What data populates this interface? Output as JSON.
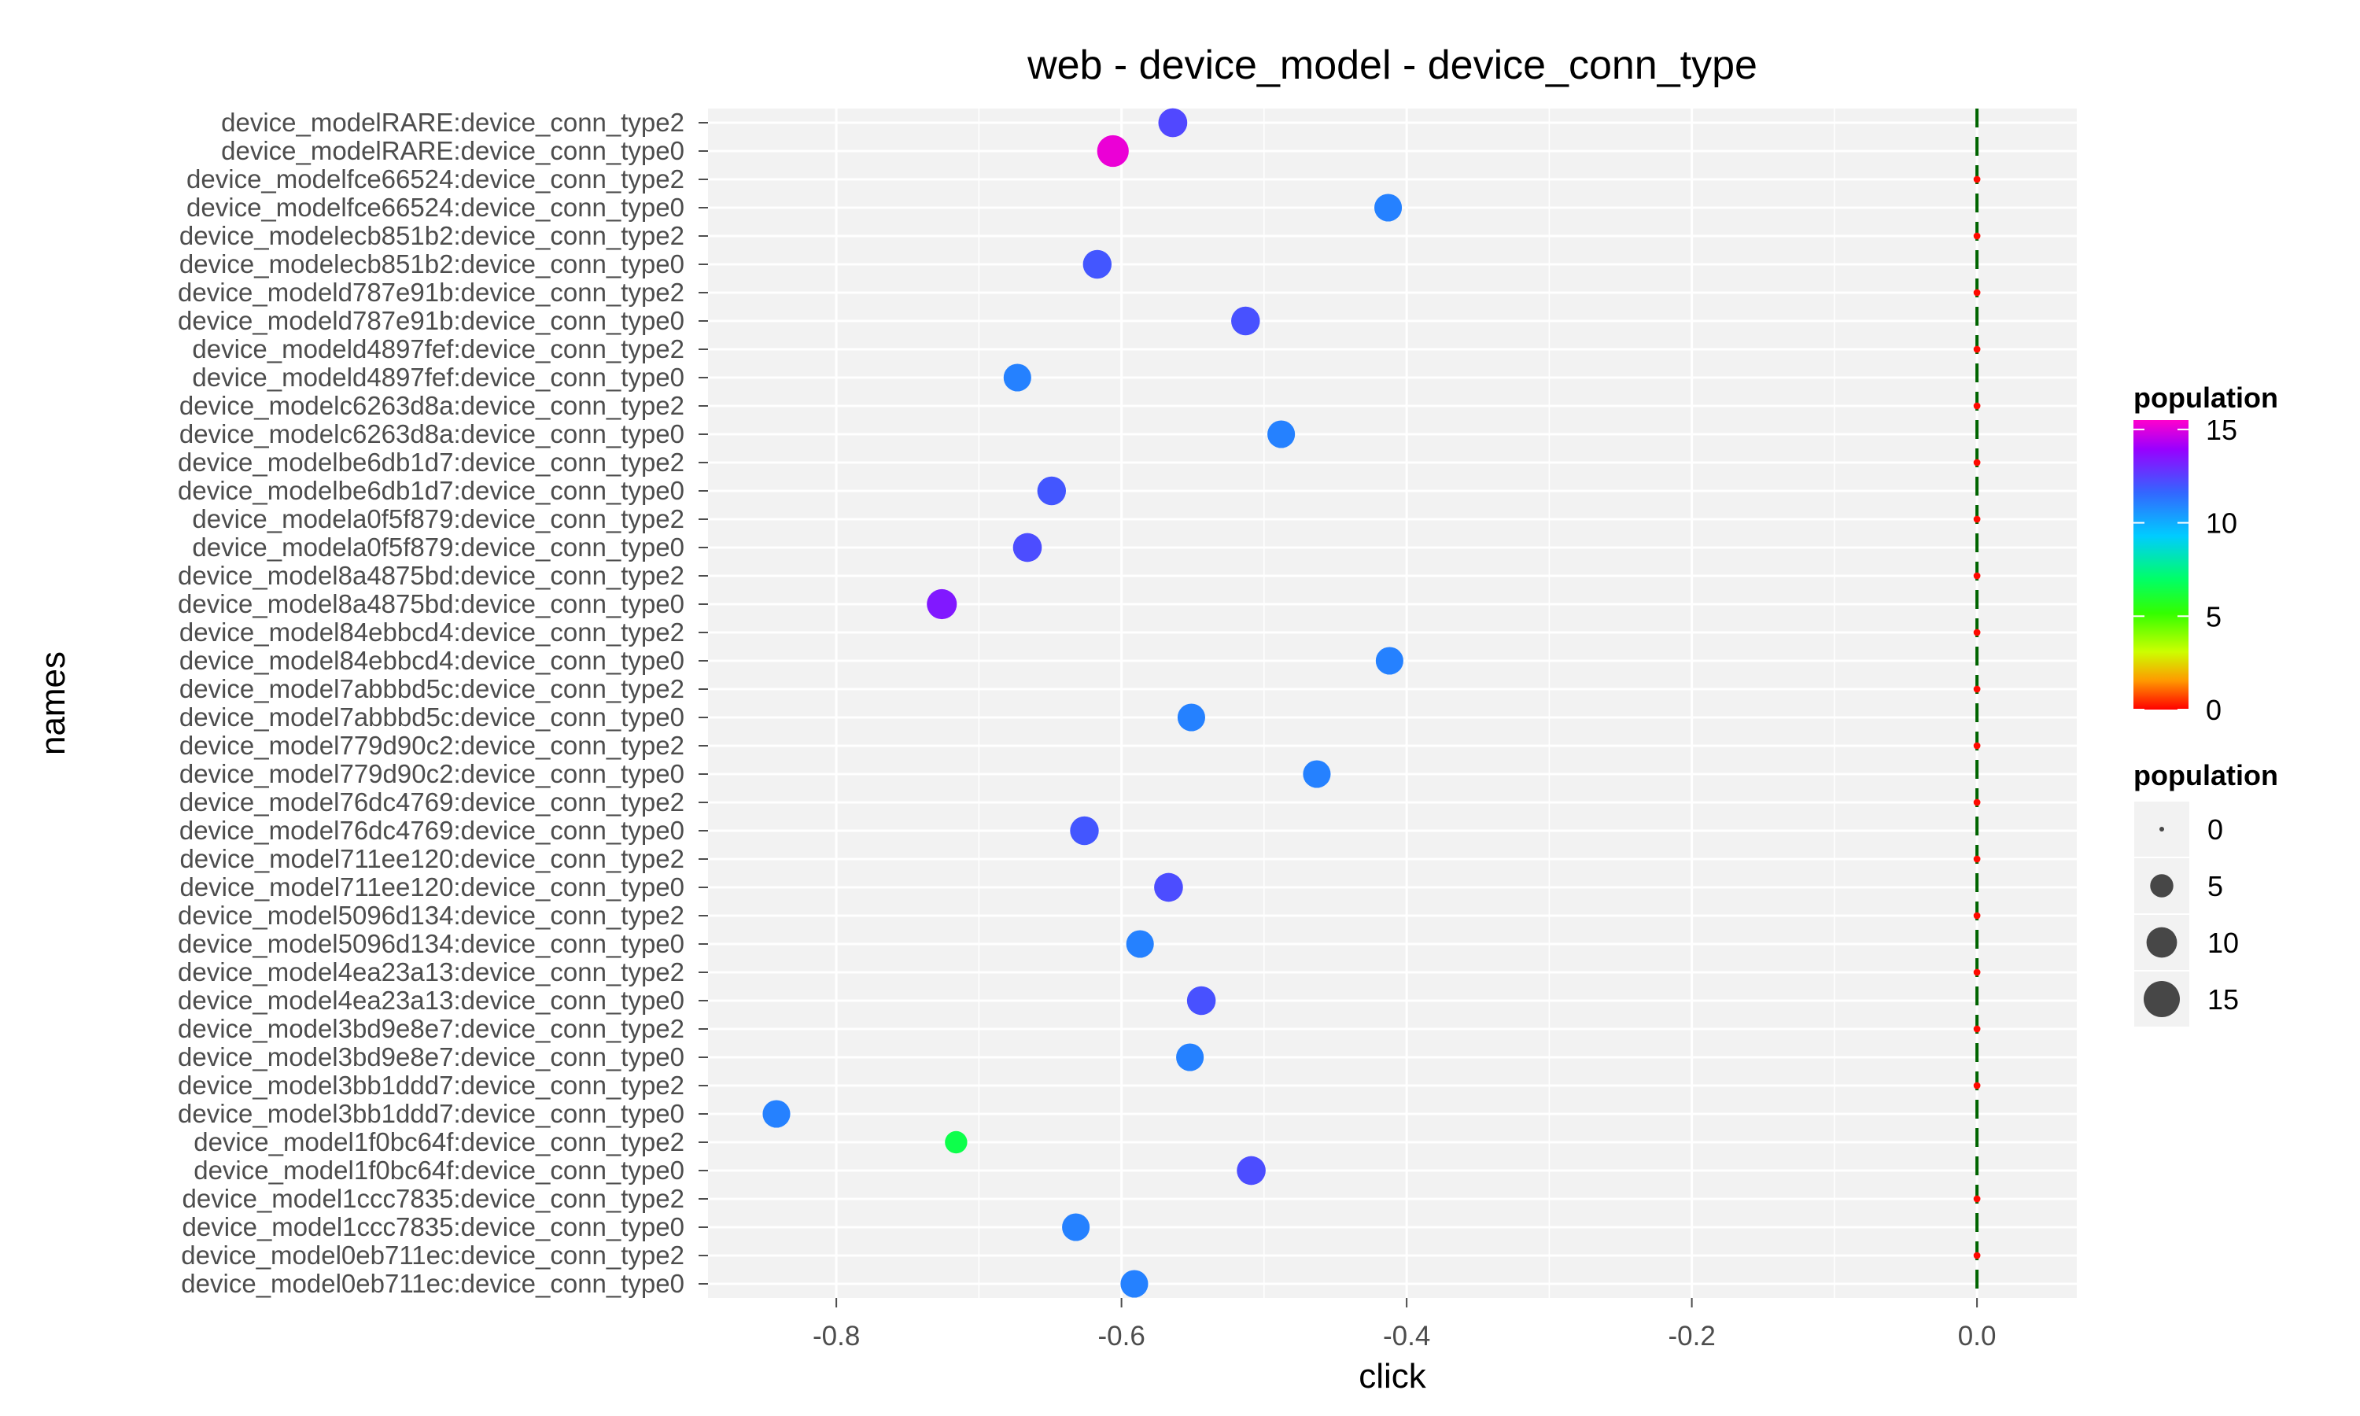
{
  "chart_data": {
    "type": "scatter",
    "title": "web - device_model - device_conn_type",
    "xlabel": "click",
    "ylabel": "names",
    "xlim": [
      -0.89,
      0.07
    ],
    "x_ticks": [
      -0.8,
      -0.6,
      -0.4,
      -0.2,
      0.0
    ],
    "x_tick_labels": [
      "-0.8",
      "-0.6",
      "-0.4",
      "-0.2",
      "0.0"
    ],
    "grid": true,
    "reference_line": {
      "x": 0.0,
      "style": "dashed",
      "color": "#006400"
    },
    "categories": [
      "device_modelRARE:device_conn_type2",
      "device_modelRARE:device_conn_type0",
      "device_modelfce66524:device_conn_type2",
      "device_modelfce66524:device_conn_type0",
      "device_modelecb851b2:device_conn_type2",
      "device_modelecb851b2:device_conn_type0",
      "device_modeld787e91b:device_conn_type2",
      "device_modeld787e91b:device_conn_type0",
      "device_modeld4897fef:device_conn_type2",
      "device_modeld4897fef:device_conn_type0",
      "device_modelc6263d8a:device_conn_type2",
      "device_modelc6263d8a:device_conn_type0",
      "device_modelbe6db1d7:device_conn_type2",
      "device_modelbe6db1d7:device_conn_type0",
      "device_modela0f5f879:device_conn_type2",
      "device_modela0f5f879:device_conn_type0",
      "device_model8a4875bd:device_conn_type2",
      "device_model8a4875bd:device_conn_type0",
      "device_model84ebbcd4:device_conn_type2",
      "device_model84ebbcd4:device_conn_type0",
      "device_model7abbbd5c:device_conn_type2",
      "device_model7abbbd5c:device_conn_type0",
      "device_model779d90c2:device_conn_type2",
      "device_model779d90c2:device_conn_type0",
      "device_model76dc4769:device_conn_type2",
      "device_model76dc4769:device_conn_type0",
      "device_model711ee120:device_conn_type2",
      "device_model711ee120:device_conn_type0",
      "device_model5096d134:device_conn_type2",
      "device_model5096d134:device_conn_type0",
      "device_model4ea23a13:device_conn_type2",
      "device_model4ea23a13:device_conn_type0",
      "device_model3bd9e8e7:device_conn_type2",
      "device_model3bd9e8e7:device_conn_type0",
      "device_model3bb1ddd7:device_conn_type2",
      "device_model3bb1ddd7:device_conn_type0",
      "device_model1f0bc64f:device_conn_type2",
      "device_model1f0bc64f:device_conn_type0",
      "device_model1ccc7835:device_conn_type2",
      "device_model1ccc7835:device_conn_type0",
      "device_model0eb711ec:device_conn_type2",
      "device_model0eb711ec:device_conn_type0"
    ],
    "points": [
      {
        "name": "device_modelRARE:device_conn_type2",
        "click": -0.564,
        "population": 12.3
      },
      {
        "name": "device_modelRARE:device_conn_type0",
        "click": -0.606,
        "population": 15.2
      },
      {
        "name": "device_modelfce66524:device_conn_type2",
        "click": 0.0,
        "population": 0.1
      },
      {
        "name": "device_modelfce66524:device_conn_type0",
        "click": -0.413,
        "population": 11.0
      },
      {
        "name": "device_modelecb851b2:device_conn_type2",
        "click": 0.0,
        "population": 0.1
      },
      {
        "name": "device_modelecb851b2:device_conn_type0",
        "click": -0.617,
        "population": 12.0
      },
      {
        "name": "device_modeld787e91b:device_conn_type2",
        "click": 0.0,
        "population": 0.1
      },
      {
        "name": "device_modeld787e91b:device_conn_type0",
        "click": -0.513,
        "population": 12.1
      },
      {
        "name": "device_modeld4897fef:device_conn_type2",
        "click": 0.0,
        "population": 0.1
      },
      {
        "name": "device_modeld4897fef:device_conn_type0",
        "click": -0.673,
        "population": 11.0
      },
      {
        "name": "device_modelc6263d8a:device_conn_type2",
        "click": 0.0,
        "population": 0.1
      },
      {
        "name": "device_modelc6263d8a:device_conn_type0",
        "click": -0.488,
        "population": 11.0
      },
      {
        "name": "device_modelbe6db1d7:device_conn_type2",
        "click": 0.0,
        "population": 0.1
      },
      {
        "name": "device_modelbe6db1d7:device_conn_type0",
        "click": -0.649,
        "population": 12.0
      },
      {
        "name": "device_modela0f5f879:device_conn_type2",
        "click": 0.0,
        "population": 0.1
      },
      {
        "name": "device_modela0f5f879:device_conn_type0",
        "click": -0.666,
        "population": 12.2
      },
      {
        "name": "device_model8a4875bd:device_conn_type2",
        "click": 0.0,
        "population": 0.1
      },
      {
        "name": "device_model8a4875bd:device_conn_type0",
        "click": -0.726,
        "population": 13.4
      },
      {
        "name": "device_model84ebbcd4:device_conn_type2",
        "click": 0.0,
        "population": 0.1
      },
      {
        "name": "device_model84ebbcd4:device_conn_type0",
        "click": -0.412,
        "population": 11.0
      },
      {
        "name": "device_model7abbbd5c:device_conn_type2",
        "click": 0.0,
        "population": 0.1
      },
      {
        "name": "device_model7abbbd5c:device_conn_type0",
        "click": -0.551,
        "population": 11.0
      },
      {
        "name": "device_model779d90c2:device_conn_type2",
        "click": 0.0,
        "population": 0.1
      },
      {
        "name": "device_model779d90c2:device_conn_type0",
        "click": -0.463,
        "population": 11.0
      },
      {
        "name": "device_model76dc4769:device_conn_type2",
        "click": 0.0,
        "population": 0.1
      },
      {
        "name": "device_model76dc4769:device_conn_type0",
        "click": -0.626,
        "population": 12.0
      },
      {
        "name": "device_model711ee120:device_conn_type2",
        "click": 0.0,
        "population": 0.1
      },
      {
        "name": "device_model711ee120:device_conn_type0",
        "click": -0.567,
        "population": 12.2
      },
      {
        "name": "device_model5096d134:device_conn_type2",
        "click": 0.0,
        "population": 0.1
      },
      {
        "name": "device_model5096d134:device_conn_type0",
        "click": -0.587,
        "population": 11.0
      },
      {
        "name": "device_model4ea23a13:device_conn_type2",
        "click": 0.0,
        "population": 0.1
      },
      {
        "name": "device_model4ea23a13:device_conn_type0",
        "click": -0.544,
        "population": 12.1
      },
      {
        "name": "device_model3bd9e8e7:device_conn_type2",
        "click": 0.0,
        "population": 0.1
      },
      {
        "name": "device_model3bd9e8e7:device_conn_type0",
        "click": -0.552,
        "population": 11.0
      },
      {
        "name": "device_model3bb1ddd7:device_conn_type2",
        "click": 0.0,
        "population": 0.1
      },
      {
        "name": "device_model3bb1ddd7:device_conn_type0",
        "click": -0.842,
        "population": 11.0
      },
      {
        "name": "device_model1f0bc64f:device_conn_type2",
        "click": -0.716,
        "population": 6.5
      },
      {
        "name": "device_model1f0bc64f:device_conn_type0",
        "click": -0.509,
        "population": 12.2
      },
      {
        "name": "device_model1ccc7835:device_conn_type2",
        "click": 0.0,
        "population": 0.1
      },
      {
        "name": "device_model1ccc7835:device_conn_type0",
        "click": -0.632,
        "population": 11.0
      },
      {
        "name": "device_model0eb711ec:device_conn_type2",
        "click": 0.0,
        "population": 0.1
      },
      {
        "name": "device_model0eb711ec:device_conn_type0",
        "click": -0.591,
        "population": 11.0
      }
    ],
    "legend_color": {
      "title": "population",
      "breaks": [
        0,
        5,
        10,
        15
      ],
      "labels": [
        "0",
        "5",
        "10",
        "15"
      ],
      "range": [
        0,
        15.5
      ]
    },
    "legend_size": {
      "title": "population",
      "breaks": [
        0,
        5,
        10,
        15
      ],
      "labels": [
        "0",
        "5",
        "10",
        "15"
      ]
    },
    "legend_placement": "right",
    "colors": {
      "panel_background": "#f2f2f2",
      "grid_major": "#ffffff",
      "reference_line": "#006400",
      "size_legend_point": "#474747"
    }
  }
}
